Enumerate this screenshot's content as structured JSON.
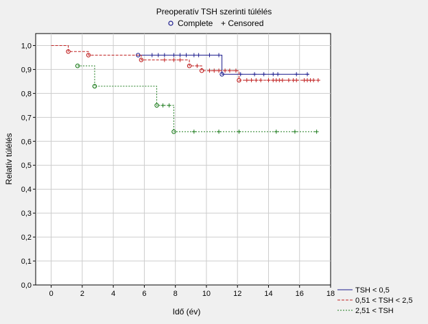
{
  "chart_data": {
    "type": "line",
    "title": "Preoperatív TSH szerinti túlélés",
    "marker_legend": {
      "complete": "Complete",
      "censored": "+ Censored"
    },
    "xlabel": "Idő (év)",
    "ylabel": "Relatív túlélés",
    "xlim": [
      -1,
      18
    ],
    "ylim": [
      0,
      1.05
    ],
    "x_ticks": [
      0,
      2,
      4,
      6,
      8,
      10,
      12,
      14,
      16,
      18
    ],
    "x_tick_labels": [
      "0",
      "2",
      "4",
      "6",
      "8",
      "10",
      "12",
      "14",
      "16",
      "18"
    ],
    "y_ticks": [
      0,
      0.1,
      0.2,
      0.3,
      0.4,
      0.5,
      0.6,
      0.7,
      0.8,
      0.9,
      1.0
    ],
    "y_tick_labels": [
      "0,0",
      "0,1",
      "0,2",
      "0,3",
      "0,4",
      "0,5",
      "0,6",
      "0,7",
      "0,8",
      "0,9",
      "1,0"
    ],
    "grid": true,
    "legend_position": "bottom-right",
    "series": [
      {
        "name": "TSH < 0,5",
        "color": "#1a1a8c",
        "dash": "solid",
        "start_x": 5.6,
        "end_x": 16.6,
        "steps": [
          [
            5.6,
            0.96
          ],
          [
            11.0,
            0.88
          ]
        ],
        "censored": [
          [
            6.5,
            0.96
          ],
          [
            6.9,
            0.96
          ],
          [
            7.3,
            0.96
          ],
          [
            7.9,
            0.96
          ],
          [
            8.3,
            0.96
          ],
          [
            8.7,
            0.96
          ],
          [
            9.2,
            0.96
          ],
          [
            9.5,
            0.96
          ],
          [
            10.2,
            0.96
          ],
          [
            10.8,
            0.96
          ],
          [
            12.2,
            0.88
          ],
          [
            13.1,
            0.88
          ],
          [
            13.7,
            0.88
          ],
          [
            14.3,
            0.88
          ],
          [
            14.6,
            0.88
          ],
          [
            15.8,
            0.88
          ],
          [
            16.5,
            0.88
          ]
        ]
      },
      {
        "name": "0,51 < TSH < 2,5",
        "color": "#c02020",
        "dash": "dashed",
        "start_x": 0.0,
        "end_x": 17.2,
        "initial_y": 1.0,
        "steps": [
          [
            1.1,
            0.975
          ],
          [
            2.4,
            0.96
          ],
          [
            5.8,
            0.94
          ],
          [
            8.9,
            0.915
          ],
          [
            9.7,
            0.895
          ],
          [
            12.1,
            0.855
          ]
        ],
        "censored": [
          [
            7.3,
            0.94
          ],
          [
            7.9,
            0.94
          ],
          [
            8.3,
            0.94
          ],
          [
            9.4,
            0.915
          ],
          [
            10.2,
            0.895
          ],
          [
            10.5,
            0.895
          ],
          [
            10.8,
            0.895
          ],
          [
            11.2,
            0.895
          ],
          [
            11.5,
            0.895
          ],
          [
            11.9,
            0.895
          ],
          [
            12.6,
            0.855
          ],
          [
            12.9,
            0.855
          ],
          [
            13.2,
            0.855
          ],
          [
            13.5,
            0.855
          ],
          [
            14.0,
            0.855
          ],
          [
            14.3,
            0.855
          ],
          [
            14.5,
            0.855
          ],
          [
            14.7,
            0.855
          ],
          [
            14.9,
            0.855
          ],
          [
            15.3,
            0.855
          ],
          [
            15.6,
            0.855
          ],
          [
            15.8,
            0.855
          ],
          [
            16.3,
            0.855
          ],
          [
            16.5,
            0.855
          ],
          [
            16.7,
            0.855
          ],
          [
            16.9,
            0.855
          ],
          [
            17.2,
            0.855
          ]
        ]
      },
      {
        "name": "2,51 < TSH",
        "color": "#1a7a1a",
        "dash": "dotted",
        "start_x": 1.7,
        "end_x": 17.1,
        "steps": [
          [
            1.7,
            0.915
          ],
          [
            2.8,
            0.83
          ],
          [
            6.8,
            0.75
          ],
          [
            7.9,
            0.64
          ]
        ],
        "censored": [
          [
            7.2,
            0.75
          ],
          [
            7.6,
            0.75
          ],
          [
            9.2,
            0.64
          ],
          [
            10.8,
            0.64
          ],
          [
            12.1,
            0.64
          ],
          [
            14.5,
            0.64
          ],
          [
            15.7,
            0.64
          ],
          [
            17.1,
            0.64
          ]
        ]
      }
    ]
  }
}
